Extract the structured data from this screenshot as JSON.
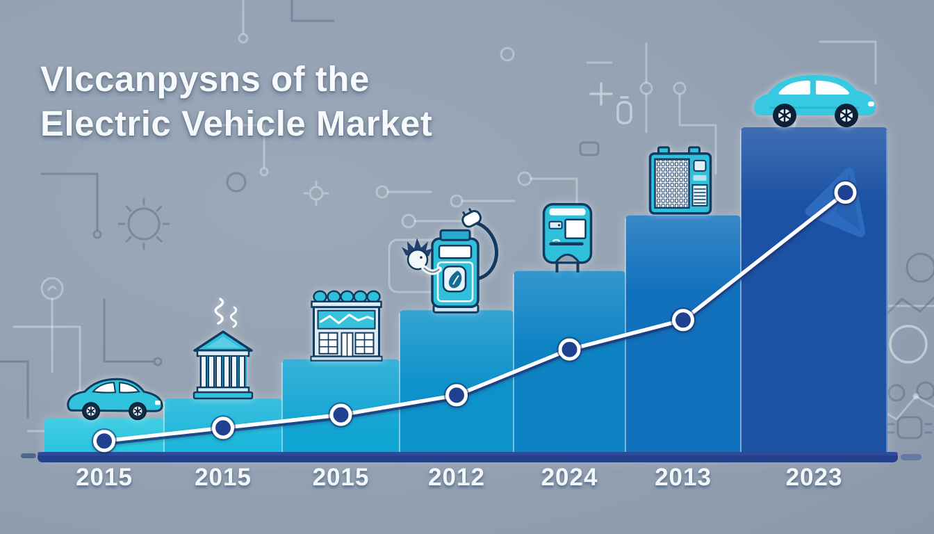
{
  "title": {
    "line1": "VIccanpysns of the",
    "line2": "Electric Vehicle Market"
  },
  "chart_data": {
    "type": "bar",
    "title": "VIccanpysns of the Electric Vehicle Market",
    "categories": [
      "2015",
      "2015",
      "2015",
      "2012",
      "2024",
      "2013",
      "2023"
    ],
    "values": [
      11,
      17,
      29,
      44,
      56,
      73,
      100
    ],
    "series": [
      {
        "name": "ev-market-trend-line",
        "values": [
          4,
          8,
          12,
          18,
          32,
          41,
          80
        ]
      }
    ],
    "bar_colors": [
      "#20c4de",
      "#14b4da",
      "#10a4d3",
      "#0e92ca",
      "#0e83c4",
      "#1271bc",
      "#1b52a4"
    ],
    "icons": [
      "city-car",
      "bank-building",
      "ev-factory",
      "ev-charging-pump",
      "charging-kiosk",
      "battery-cabinet",
      "suv-car"
    ],
    "xlabel": "",
    "ylabel": "",
    "ylim": [
      0,
      100
    ],
    "grid": false,
    "legend": false
  },
  "colors": {
    "background": "#94a2b3",
    "baseline": "#26418c",
    "baseline_tail": "#52719f",
    "trend_line": "#ffffff",
    "trend_shadow": "#1b3a80",
    "marker_fill": "#20418f",
    "arrow": "#2f6dc1",
    "icon_fill": "#2fc0dc",
    "icon_outline": "#12395e"
  },
  "decor": {
    "background_icons": [
      "circuit-trace",
      "gear",
      "dial",
      "plus-sign",
      "battery-outline",
      "sparkline",
      "chip",
      "ring"
    ]
  }
}
